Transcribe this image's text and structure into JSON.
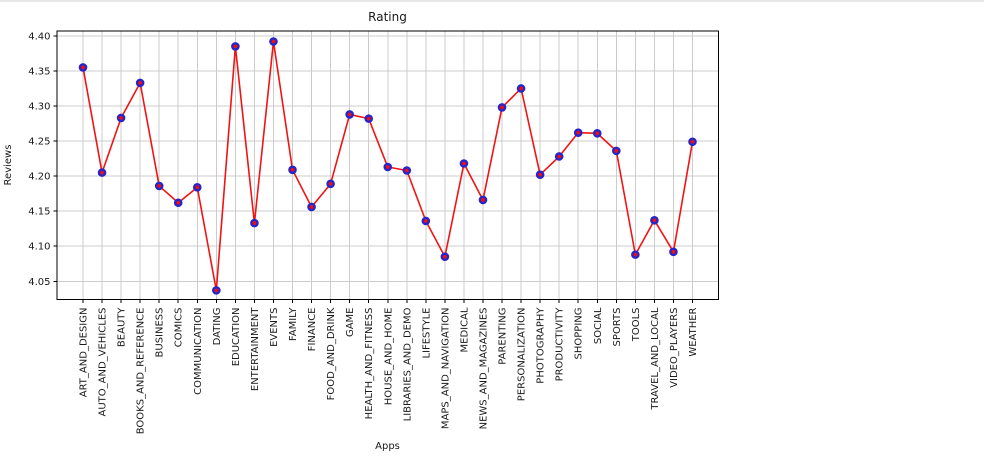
{
  "figure": {
    "background": "#ffffff",
    "top_strip_color": "#e8e8e8"
  },
  "chart_data": {
    "type": "line",
    "title": "Rating",
    "xlabel": "Apps",
    "ylabel": "Reviews",
    "categories": [
      "ART_AND_DESIGN",
      "AUTO_AND_VEHICLES",
      "BEAUTY",
      "BOOKS_AND_REFERENCE",
      "BUSINESS",
      "COMICS",
      "COMMUNICATION",
      "DATING",
      "EDUCATION",
      "ENTERTAINMENT",
      "EVENTS",
      "FAMILY",
      "FINANCE",
      "FOOD_AND_DRINK",
      "GAME",
      "HEALTH_AND_FITNESS",
      "HOUSE_AND_HOME",
      "LIBRARIES_AND_DEMO",
      "LIFESTYLE",
      "MAPS_AND_NAVIGATION",
      "MEDICAL",
      "NEWS_AND_MAGAZINES",
      "PARENTING",
      "PERSONALIZATION",
      "PHOTOGRAPHY",
      "PRODUCTIVITY",
      "SHOPPING",
      "SOCIAL",
      "SPORTS",
      "TOOLS",
      "TRAVEL_AND_LOCAL",
      "VIDEO_PLAYERS",
      "WEATHER"
    ],
    "series": [
      {
        "name": "Rating",
        "values": [
          4.355,
          4.205,
          4.283,
          4.333,
          4.186,
          4.162,
          4.184,
          4.037,
          4.385,
          4.133,
          4.392,
          4.209,
          4.156,
          4.189,
          4.288,
          4.282,
          4.213,
          4.208,
          4.136,
          4.085,
          4.218,
          4.166,
          4.298,
          4.325,
          4.202,
          4.228,
          4.262,
          4.261,
          4.236,
          4.088,
          4.137,
          4.092,
          4.249
        ]
      }
    ],
    "yticks": [
      4.05,
      4.1,
      4.15,
      4.2,
      4.25,
      4.3,
      4.35,
      4.4
    ],
    "ylim": [
      4.024,
      4.407
    ],
    "grid": true,
    "x_tick_rotation": 90,
    "legend": "none",
    "style": {
      "line_color": "#f01414",
      "marker_face_color": "#ee0f0f",
      "marker_edge_color": "#2525cd",
      "grid_color": "#cccccc",
      "spine_color": "#000000",
      "text_color": "#1a1a1a"
    }
  }
}
